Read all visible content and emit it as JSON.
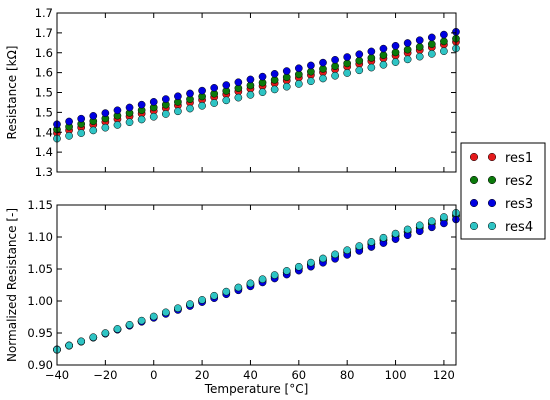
{
  "chart_data": [
    {
      "type": "scatter",
      "title": "",
      "xlabel": "",
      "ylabel": "Resistance [kΩ]",
      "xlim": [
        -40,
        125
      ],
      "ylim": [
        1.3,
        1.7
      ],
      "xticks": [
        -40,
        -20,
        0,
        20,
        40,
        60,
        80,
        100,
        120
      ],
      "xtick_labels": [],
      "yticks": [
        1.3,
        1.35,
        1.4,
        1.45,
        1.5,
        1.55,
        1.6,
        1.65,
        1.7
      ],
      "ytick_labels": [
        "1.3",
        "1.4",
        "1.4",
        "1.5",
        "1.5",
        "1.6",
        "1.6",
        "1.7",
        "1.7"
      ],
      "grid": false,
      "x": [
        -40,
        -35,
        -30,
        -25,
        -20,
        -15,
        -10,
        -5,
        0,
        5,
        10,
        15,
        20,
        25,
        30,
        35,
        40,
        45,
        50,
        55,
        60,
        65,
        70,
        75,
        80,
        85,
        90,
        95,
        100,
        105,
        110,
        115,
        120,
        125
      ],
      "series": [
        {
          "name": "res1",
          "color": "#e41a1c",
          "start": 1.398,
          "slope": 0.00139
        },
        {
          "name": "res2",
          "color": "#0b7a0b",
          "start": 1.407,
          "slope": 0.001385
        },
        {
          "name": "res3",
          "color": "#0000e0",
          "start": 1.42,
          "slope": 0.00141
        },
        {
          "name": "res4",
          "color": "#2ec4c4",
          "start": 1.384,
          "slope": 0.001375
        }
      ]
    },
    {
      "type": "scatter",
      "title": "",
      "xlabel": "Temperature [°C]",
      "ylabel": "Normalized Resistance [-]",
      "xlim": [
        -40,
        125
      ],
      "ylim": [
        0.9,
        1.15
      ],
      "xticks": [
        -40,
        -20,
        0,
        20,
        40,
        60,
        80,
        100,
        120
      ],
      "xtick_labels": [
        "−40",
        "−20",
        "0",
        "20",
        "40",
        "60",
        "80",
        "100",
        "120"
      ],
      "yticks": [
        0.9,
        0.95,
        1.0,
        1.05,
        1.1,
        1.15
      ],
      "ytick_labels": [
        "0.90",
        "0.95",
        "1.00",
        "1.05",
        "1.10",
        "1.15"
      ],
      "grid": false,
      "x": [
        -40,
        -35,
        -30,
        -25,
        -20,
        -15,
        -10,
        -5,
        0,
        5,
        10,
        15,
        20,
        25,
        30,
        35,
        40,
        45,
        50,
        55,
        60,
        65,
        70,
        75,
        80,
        85,
        90,
        95,
        100,
        105,
        110,
        115,
        120,
        125
      ],
      "series": [
        {
          "name": "res1",
          "color": "#e41a1c",
          "start": 0.9237,
          "slope": 0.00127
        },
        {
          "name": "res2",
          "color": "#0b7a0b",
          "start": 0.924,
          "slope": 0.001272
        },
        {
          "name": "res3",
          "color": "#0000e0",
          "start": 0.9245,
          "slope": 0.00123
        },
        {
          "name": "res4",
          "color": "#2ec4c4",
          "start": 0.924,
          "slope": 0.001295
        }
      ]
    }
  ],
  "legend": {
    "placement": "right",
    "items": [
      {
        "label": "res1",
        "color": "#e41a1c"
      },
      {
        "label": "res2",
        "color": "#0b7a0b"
      },
      {
        "label": "res3",
        "color": "#0000e0"
      },
      {
        "label": "res4",
        "color": "#2ec4c4"
      }
    ]
  }
}
